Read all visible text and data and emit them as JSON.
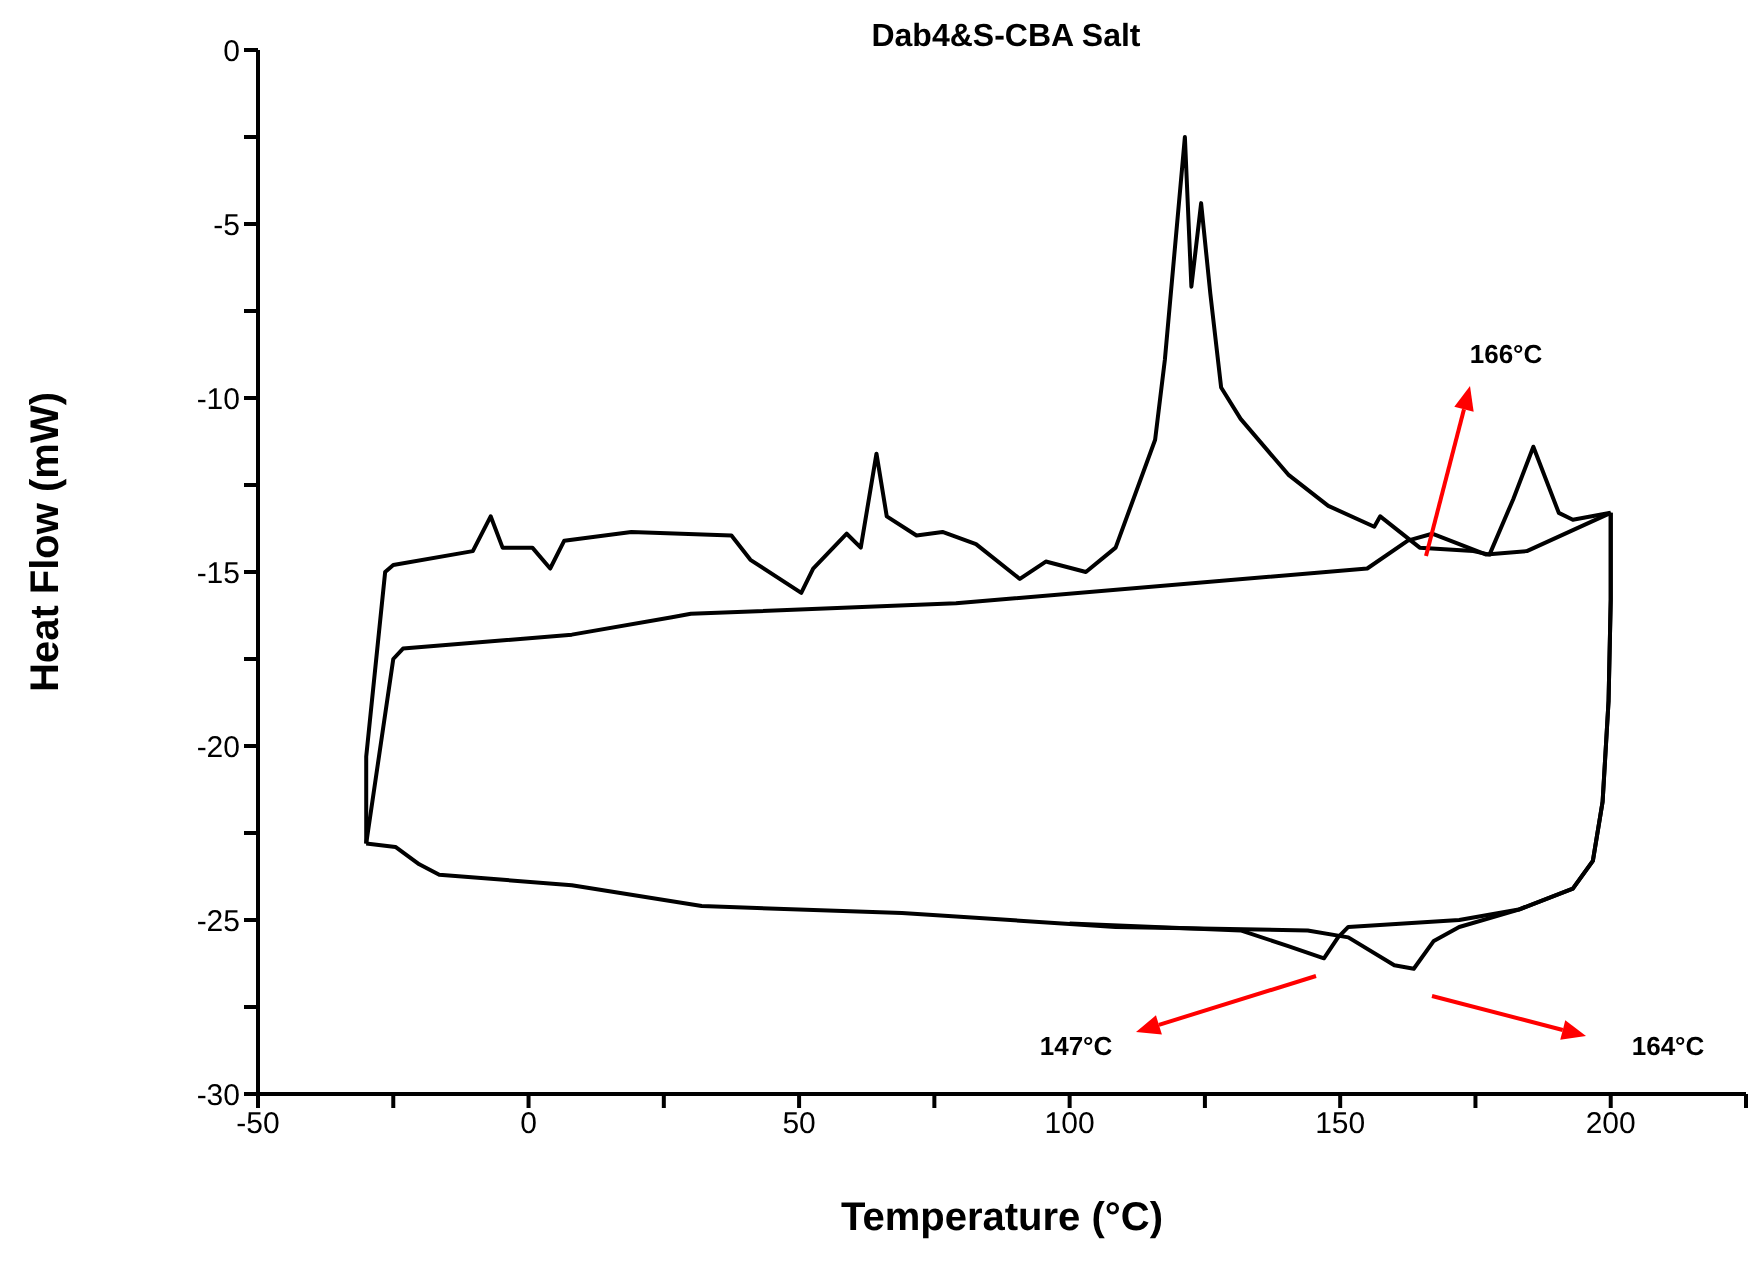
{
  "chart_data": {
    "type": "line",
    "title": "Dab4&S-CBA Salt",
    "xlabel": "Temperature (°C)",
    "ylabel": "Heat Flow (mW)",
    "xlim": [
      -50,
      225
    ],
    "ylim": [
      -30,
      0
    ],
    "xticks": [
      -50,
      {
        "value": -25,
        "label": null
      },
      0,
      {
        "value": 25,
        "label": null
      },
      50,
      {
        "value": 75,
        "label": null
      },
      100,
      {
        "value": 125,
        "label": null
      },
      150,
      {
        "value": 175,
        "label": null
      },
      200,
      {
        "value": 225,
        "label": null
      }
    ],
    "yticks": [
      -30,
      {
        "value": -27.5,
        "label": null
      },
      -25,
      {
        "value": -22.5,
        "label": null
      },
      -20,
      {
        "value": -17.5,
        "label": null
      },
      -15,
      {
        "value": -12.5,
        "label": null
      },
      -10,
      {
        "value": -7.5,
        "label": null
      },
      -5,
      {
        "value": -2.5,
        "label": null
      },
      0
    ],
    "grid": false,
    "legend": false,
    "marker": "none",
    "line_style": "solid",
    "series": [
      {
        "color": "#000000",
        "x": [
          -30,
          -30,
          -26.5,
          -25,
          -10.3,
          -7,
          -4.8,
          0.7,
          4,
          6.6,
          19,
          37.5,
          41,
          50.4,
          52.6,
          58.8,
          61.4,
          64.3,
          66.2,
          71.7,
          76.5,
          82.7,
          90.8,
          95.6,
          103,
          108.5,
          115.8,
          117.6,
          121.3,
          122.5,
          124.3,
          126,
          128,
          131.6,
          140.4,
          147.8,
          156.3,
          157.4,
          164.7,
          174.6,
          177.6,
          182,
          185.7,
          190.4,
          193,
          200
        ],
        "values": [
          -22.8,
          -20.3,
          -15,
          -14.8,
          -14.4,
          -13.4,
          -14.3,
          -14.3,
          -14.9,
          -14.1,
          -13.85,
          -13.95,
          -14.65,
          -15.6,
          -14.9,
          -13.9,
          -14.3,
          -11.6,
          -13.4,
          -13.95,
          -13.85,
          -14.2,
          -15.2,
          -14.7,
          -15,
          -14.3,
          -11.2,
          -8.9,
          -2.5,
          -6.8,
          -4.4,
          -7,
          -9.7,
          -10.6,
          -12.2,
          -13.1,
          -13.7,
          -13.4,
          -14.3,
          -14.4,
          -14.5,
          -12.9,
          -11.4,
          -13.3,
          -13.5,
          -13.3
        ]
      },
      {
        "color": "#000000",
        "x": [
          200,
          200,
          199.6,
          198.5,
          196.7,
          193,
          183,
          172,
          167.3,
          163.6,
          160,
          151.5,
          144,
          108.5,
          69,
          32,
          8,
          -16.5,
          -20.2,
          -24.6,
          -30
        ],
        "values": [
          -13.3,
          -15.8,
          -18.7,
          -21.6,
          -23.3,
          -24.1,
          -24.7,
          -25.2,
          -25.6,
          -26.4,
          -26.3,
          -25.5,
          -25.3,
          -25.2,
          -24.8,
          -24.6,
          -24,
          -23.7,
          -23.4,
          -22.9,
          -22.8
        ]
      },
      {
        "color": "#000000",
        "x": [
          -30,
          -25,
          -23.2,
          8,
          26.5,
          30,
          79,
          155,
          162.5,
          167,
          177,
          184.5,
          200
        ],
        "values": [
          -22.8,
          -17.5,
          -17.2,
          -16.8,
          -16.3,
          -16.2,
          -15.9,
          -14.9,
          -14.1,
          -13.9,
          -14.5,
          -14.4,
          -13.3
        ]
      },
      {
        "color": "#000000",
        "x": [
          200,
          200,
          199.6,
          198.5,
          196.7,
          193,
          183,
          172,
          151.5,
          149.6,
          147,
          140.4,
          131.6,
          115.8,
          100
        ],
        "values": [
          -13.3,
          -15.8,
          -18.7,
          -21.6,
          -23.3,
          -24.1,
          -24.7,
          -25,
          -25.2,
          -25.5,
          -26.1,
          -25.75,
          -25.3,
          -25.2,
          -25.1
        ]
      }
    ],
    "annotations": [
      "166°C",
      "147°C",
      "164°C"
    ]
  }
}
